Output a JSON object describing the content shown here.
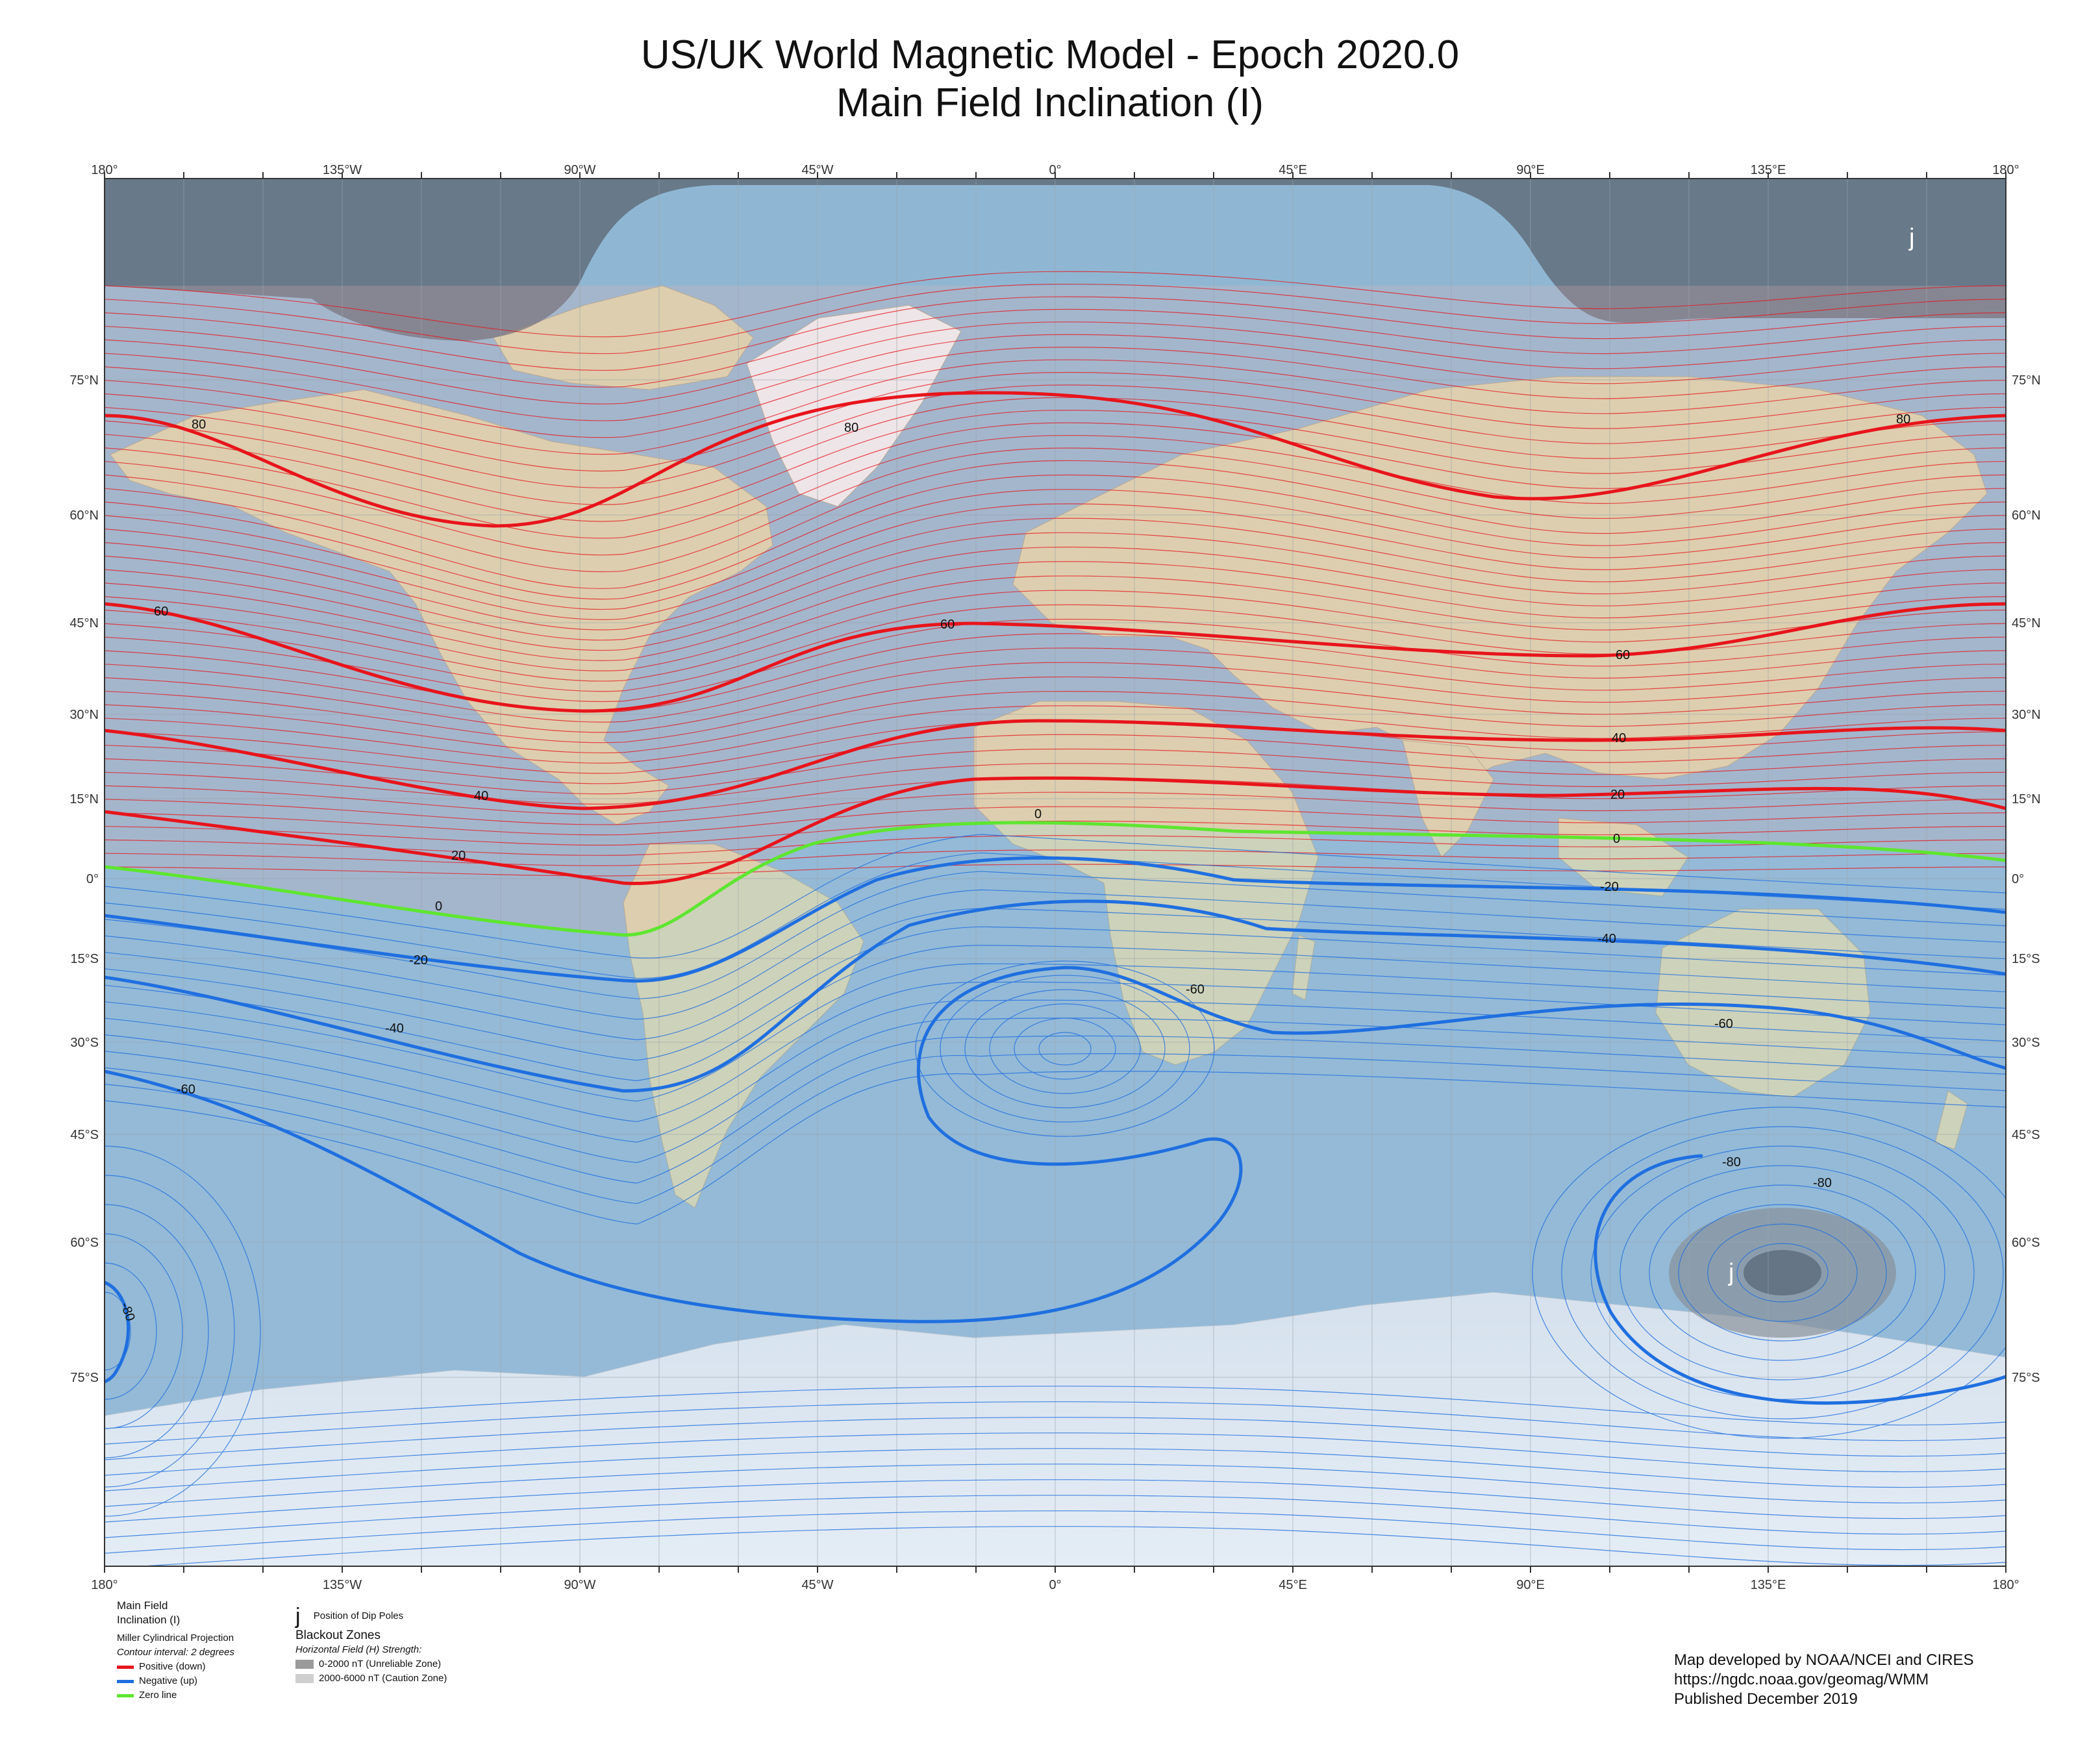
{
  "title": {
    "line1": "US/UK World Magnetic Model - Epoch 2020.0",
    "line2": "Main Field Inclination (I)"
  },
  "axes": {
    "longitude_labels": [
      "180°",
      "135°W",
      "90°W",
      "45°W",
      "0°",
      "45°E",
      "90°E",
      "135°E",
      "180°"
    ],
    "latitude_labels": [
      "75°N",
      "60°N",
      "45°N",
      "30°N",
      "15°N",
      "0°",
      "15°S",
      "30°S",
      "45°S",
      "60°S",
      "75°S"
    ]
  },
  "contour_labels": {
    "pos_80": "80",
    "pos_60": "60",
    "pos_40": "40",
    "pos_20": "20",
    "zero": "0",
    "neg_20": "-20",
    "neg_40": "-40",
    "neg_60": "-60",
    "neg_80": "-80"
  },
  "dip_pole_symbol": "j",
  "legend": {
    "title": "Main Field Inclination (I)",
    "projection": "Miller Cylindrical Projection",
    "contour_interval": "Contour interval: 2 degrees",
    "positive": "Positive (down)",
    "negative": "Negative (up)",
    "zero": "Zero line",
    "dip_pole_symbol": "j",
    "dip_pole_label": "Position of Dip Poles",
    "blackout_title": "Blackout Zones",
    "blackout_subtitle": "Horizontal Field (H) Strength:",
    "zone1": "0-2000 nT (Unreliable Zone)",
    "zone2": "2000-6000 nT (Caution Zone)"
  },
  "credits": {
    "line1": "Map developed by NOAA/NCEI and CIRES",
    "line2": "https://ngdc.noaa.gov/geomag/WMM",
    "line3": "Published December 2019"
  },
  "colors": {
    "positive": "#e8141b",
    "negative": "#1f6fe0",
    "zero": "#5ee630",
    "ocean": "#8ab3d0",
    "land": "#d9d6b0",
    "ice": "#eef2f6",
    "blackout_dark": "#9a9a9a",
    "blackout_light": "#cfcfcf"
  },
  "map_data": {
    "contours": [
      {
        "value": 80,
        "kind": "positive"
      },
      {
        "value": 60,
        "kind": "positive"
      },
      {
        "value": 40,
        "kind": "positive"
      },
      {
        "value": 20,
        "kind": "positive"
      },
      {
        "value": 0,
        "kind": "zero"
      },
      {
        "value": -20,
        "kind": "negative"
      },
      {
        "value": -40,
        "kind": "negative"
      },
      {
        "value": -60,
        "kind": "negative"
      },
      {
        "value": -80,
        "kind": "negative"
      }
    ]
  }
}
